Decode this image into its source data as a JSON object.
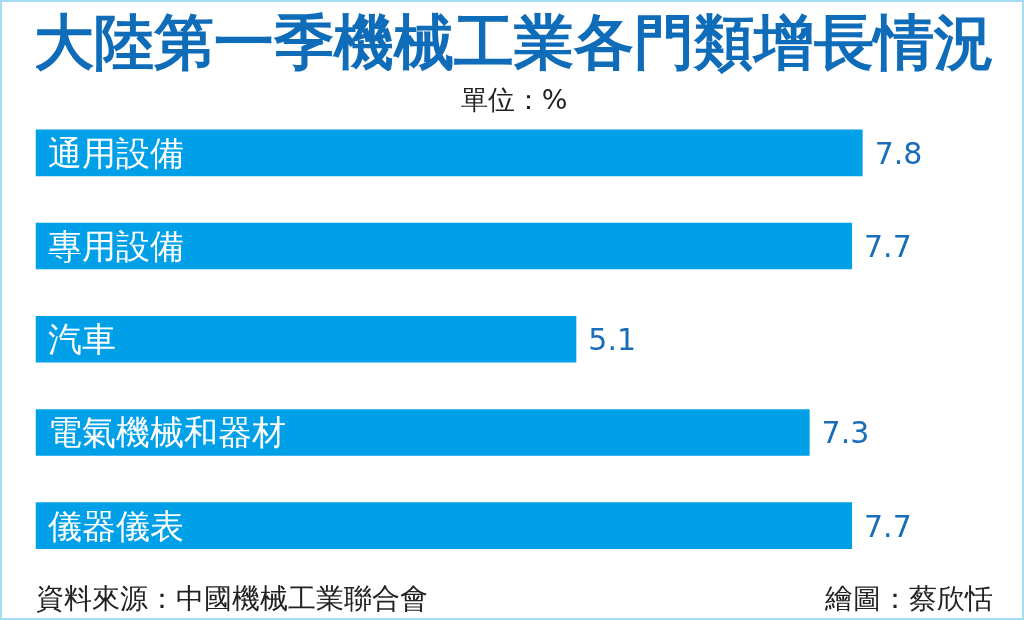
{
  "chart_data": {
    "type": "bar",
    "orientation": "horizontal",
    "title": "大陸第一季機械工業各門類增長情況",
    "subtitle": "單位：%",
    "categories": [
      "通用設備",
      "專用設備",
      "汽車",
      "電氣機械和器材",
      "儀器儀表"
    ],
    "values": [
      7.8,
      7.7,
      5.1,
      7.3,
      7.7
    ],
    "color": "#00a0e9",
    "data_labels": true,
    "tick_labels": "y",
    "annotations": [
      "資料來源：中國機械工業聯合會",
      "繪圖：蔡欣恬"
    ]
  }
}
